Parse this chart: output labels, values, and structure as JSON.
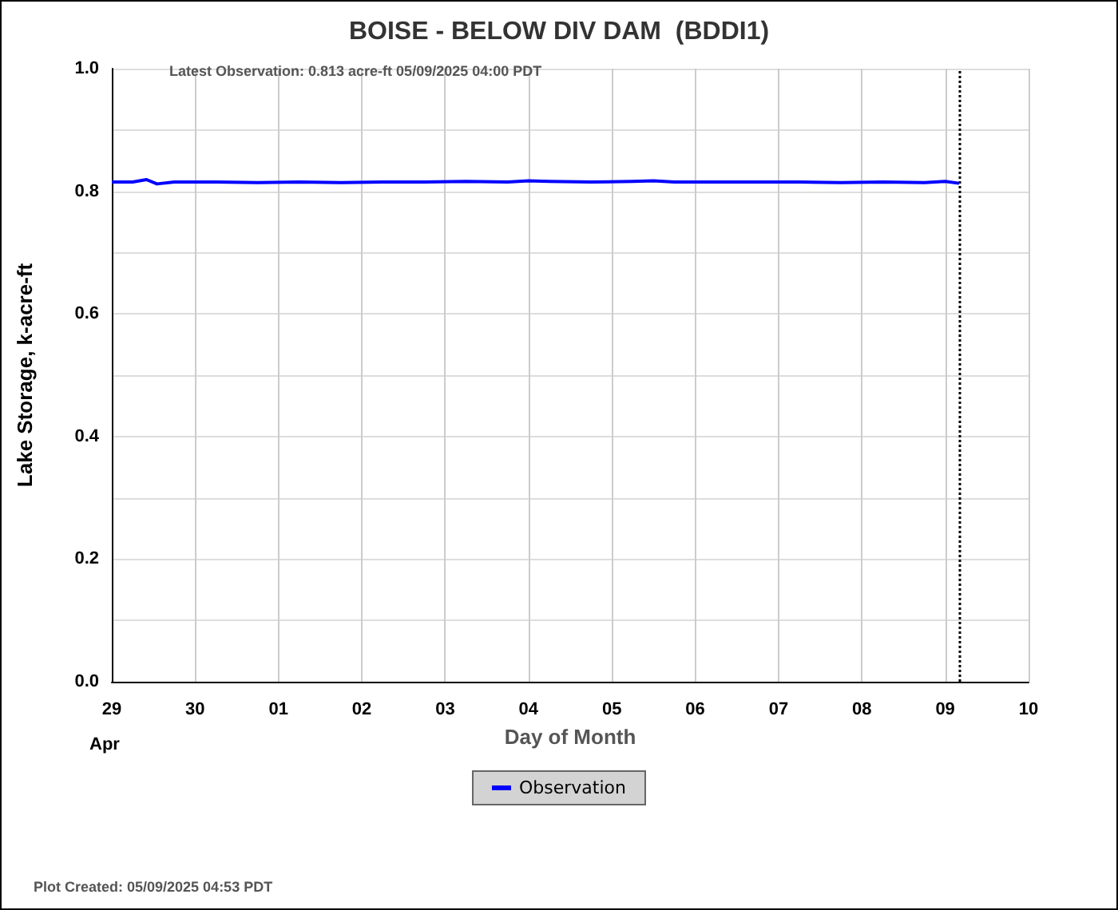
{
  "chart_data": {
    "type": "line",
    "title": "BOISE - BELOW DIV DAM  (BDDI1)",
    "subtitle": "Latest Observation: 0.813 acre-ft 05/09/2025 04:00 PDT",
    "xlabel": "Day of Month",
    "ylabel": "Lake Storage, k-acre-ft",
    "annotations": [
      "Apr",
      "Plot Created: 05/09/2025 04:53 PDT"
    ],
    "series": [
      {
        "name": "Observation",
        "color": "#0000ff",
        "x": [
          "2025-04-29T00:00",
          "2025-04-29T06:00",
          "2025-04-29T10:00",
          "2025-04-29T13:00",
          "2025-04-29T18:00",
          "2025-04-30T06:00",
          "2025-04-30T18:00",
          "2025-05-01T06:00",
          "2025-05-01T18:00",
          "2025-05-02T06:00",
          "2025-05-02T18:00",
          "2025-05-03T06:00",
          "2025-05-03T18:00",
          "2025-05-04T00:00",
          "2025-05-04T06:00",
          "2025-05-04T18:00",
          "2025-05-05T06:00",
          "2025-05-05T12:00",
          "2025-05-05T18:00",
          "2025-05-06T06:00",
          "2025-05-06T18:00",
          "2025-05-07T06:00",
          "2025-05-07T18:00",
          "2025-05-08T06:00",
          "2025-05-08T18:00",
          "2025-05-09T00:00",
          "2025-05-09T04:00"
        ],
        "values": [
          0.815,
          0.815,
          0.819,
          0.812,
          0.815,
          0.815,
          0.814,
          0.815,
          0.814,
          0.815,
          0.815,
          0.816,
          0.815,
          0.817,
          0.816,
          0.815,
          0.816,
          0.817,
          0.815,
          0.815,
          0.815,
          0.815,
          0.814,
          0.815,
          0.814,
          0.816,
          0.813
        ]
      }
    ],
    "xlim": [
      "2025-04-29T00:00",
      "2025-05-10T00:00"
    ],
    "xticks": [
      {
        "value": "2025-04-29T00:00",
        "label": "29"
      },
      {
        "value": "2025-04-30T00:00",
        "label": "30"
      },
      {
        "value": "2025-05-01T00:00",
        "label": "01"
      },
      {
        "value": "2025-05-02T00:00",
        "label": "02"
      },
      {
        "value": "2025-05-03T00:00",
        "label": "03"
      },
      {
        "value": "2025-05-04T00:00",
        "label": "04"
      },
      {
        "value": "2025-05-05T00:00",
        "label": "05"
      },
      {
        "value": "2025-05-06T00:00",
        "label": "06"
      },
      {
        "value": "2025-05-07T00:00",
        "label": "07"
      },
      {
        "value": "2025-05-08T00:00",
        "label": "08"
      },
      {
        "value": "2025-05-09T00:00",
        "label": "09"
      },
      {
        "value": "2025-05-10T00:00",
        "label": "10"
      }
    ],
    "ylim": [
      0,
      1
    ],
    "yticks": [
      {
        "value": 0,
        "label": "0.0"
      },
      {
        "value": 0.1,
        "label": null
      },
      {
        "value": 0.2,
        "label": "0.2"
      },
      {
        "value": 0.3,
        "label": null
      },
      {
        "value": 0.4,
        "label": "0.4"
      },
      {
        "value": 0.5,
        "label": null
      },
      {
        "value": 0.6,
        "label": "0.6"
      },
      {
        "value": 0.7,
        "label": null
      },
      {
        "value": 0.8,
        "label": "0.8"
      },
      {
        "value": 0.9,
        "label": null
      },
      {
        "value": 1,
        "label": "1.0"
      }
    ],
    "ref_lines": [
      {
        "axis": "x",
        "value": "2025-05-09T04:00",
        "color": "#000000",
        "line_style": "dotted"
      }
    ],
    "grid": true,
    "legend": "bottom",
    "marker": "none",
    "line_style": "solid"
  }
}
